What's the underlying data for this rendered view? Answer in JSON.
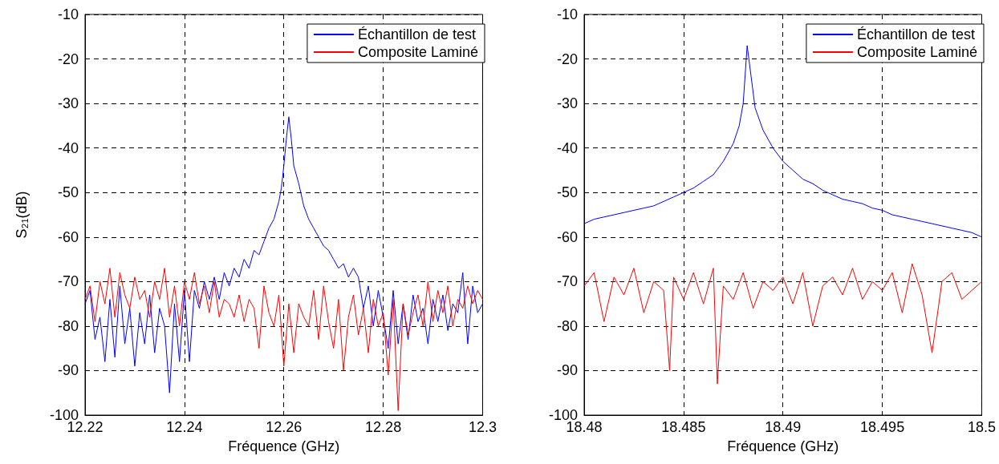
{
  "chart_data": [
    {
      "type": "line",
      "xlabel": "Fréquence (GHz)",
      "ylabel": "S₂₁(dB)",
      "xlim": [
        12.22,
        12.3
      ],
      "xticks": [
        12.22,
        12.24,
        12.26,
        12.28,
        12.3
      ],
      "ylim": [
        -100,
        -10
      ],
      "yticks": [
        -100,
        -90,
        -80,
        -70,
        -60,
        -50,
        -40,
        -30,
        -20,
        -10
      ],
      "grid": true,
      "legend": "top right",
      "line_style": "solid",
      "marker": "none",
      "series": [
        {
          "name": "Échantillon de test",
          "color": "#0000ff",
          "x": [
            12.22,
            12.221,
            12.222,
            12.223,
            12.224,
            12.225,
            12.226,
            12.227,
            12.228,
            12.229,
            12.23,
            12.231,
            12.232,
            12.233,
            12.234,
            12.235,
            12.236,
            12.237,
            12.238,
            12.239,
            12.24,
            12.241,
            12.242,
            12.243,
            12.244,
            12.245,
            12.246,
            12.247,
            12.248,
            12.249,
            12.25,
            12.251,
            12.252,
            12.253,
            12.254,
            12.255,
            12.256,
            12.257,
            12.258,
            12.259,
            12.2595,
            12.26,
            12.2605,
            12.261,
            12.2615,
            12.262,
            12.263,
            12.264,
            12.265,
            12.266,
            12.267,
            12.268,
            12.269,
            12.27,
            12.271,
            12.272,
            12.273,
            12.274,
            12.275,
            12.276,
            12.277,
            12.278,
            12.279,
            12.28,
            12.281,
            12.282,
            12.283,
            12.284,
            12.285,
            12.286,
            12.287,
            12.288,
            12.289,
            12.29,
            12.291,
            12.292,
            12.293,
            12.294,
            12.295,
            12.296,
            12.297,
            12.298,
            12.299,
            12.3
          ],
          "values": [
            -75,
            -72,
            -83,
            -78,
            -88,
            -74,
            -87,
            -71,
            -84,
            -76,
            -89,
            -77,
            -84,
            -73,
            -86,
            -76,
            -80,
            -95,
            -75,
            -88,
            -72,
            -88,
            -72,
            -76,
            -70,
            -74,
            -69,
            -74,
            -68,
            -71,
            -67,
            -69,
            -65,
            -67,
            -63,
            -64,
            -61,
            -58,
            -56,
            -52,
            -49,
            -44,
            -38,
            -33,
            -38,
            -44,
            -48,
            -53,
            -56,
            -58,
            -60,
            -62,
            -63,
            -65,
            -67,
            -66,
            -69,
            -67,
            -69,
            -76,
            -71,
            -80,
            -72,
            -78,
            -85,
            -72,
            -84,
            -75,
            -83,
            -73,
            -79,
            -76,
            -84,
            -74,
            -79,
            -73,
            -81,
            -75,
            -77,
            -68,
            -84,
            -71,
            -77,
            -75
          ]
        },
        {
          "name": "Composite Laminé",
          "color": "#ff0000",
          "x": [
            12.22,
            12.221,
            12.222,
            12.223,
            12.224,
            12.225,
            12.226,
            12.227,
            12.228,
            12.229,
            12.23,
            12.231,
            12.232,
            12.233,
            12.234,
            12.235,
            12.236,
            12.237,
            12.238,
            12.239,
            12.24,
            12.241,
            12.242,
            12.243,
            12.244,
            12.245,
            12.246,
            12.247,
            12.248,
            12.249,
            12.25,
            12.251,
            12.252,
            12.253,
            12.254,
            12.255,
            12.256,
            12.257,
            12.258,
            12.259,
            12.26,
            12.261,
            12.262,
            12.263,
            12.264,
            12.265,
            12.266,
            12.267,
            12.268,
            12.269,
            12.27,
            12.271,
            12.272,
            12.273,
            12.274,
            12.275,
            12.276,
            12.277,
            12.278,
            12.279,
            12.28,
            12.281,
            12.282,
            12.283,
            12.284,
            12.285,
            12.286,
            12.287,
            12.288,
            12.289,
            12.29,
            12.291,
            12.292,
            12.293,
            12.294,
            12.295,
            12.296,
            12.297,
            12.298,
            12.299,
            12.3
          ],
          "values": [
            -74,
            -71,
            -79,
            -70,
            -75,
            -67,
            -78,
            -68,
            -73,
            -76,
            -69,
            -74,
            -72,
            -78,
            -70,
            -74,
            -67,
            -78,
            -71,
            -80,
            -70,
            -74,
            -68,
            -75,
            -71,
            -77,
            -70,
            -78,
            -74,
            -75,
            -78,
            -73,
            -79,
            -74,
            -76,
            -85,
            -71,
            -77,
            -80,
            -73,
            -89,
            -75,
            -86,
            -75,
            -78,
            -80,
            -72,
            -83,
            -71,
            -79,
            -85,
            -74,
            -90,
            -78,
            -73,
            -82,
            -76,
            -86,
            -74,
            -80,
            -77,
            -91,
            -74,
            -99,
            -75,
            -82,
            -77,
            -73,
            -80,
            -70,
            -79,
            -72,
            -77,
            -71,
            -80,
            -74,
            -76,
            -71,
            -75,
            -72,
            -74
          ]
        }
      ]
    },
    {
      "type": "line",
      "xlabel": "Fréquence (GHz)",
      "xlim": [
        18.48,
        18.5
      ],
      "xticks": [
        18.48,
        18.485,
        18.49,
        18.495,
        18.5
      ],
      "ylim": [
        -100,
        -10
      ],
      "yticks": [
        -100,
        -90,
        -80,
        -70,
        -60,
        -50,
        -40,
        -30,
        -20,
        -10
      ],
      "grid": true,
      "legend": "top right",
      "line_style": "solid",
      "marker": "none",
      "series": [
        {
          "name": "Échantillon de test",
          "color": "#0000ff",
          "x": [
            18.48,
            18.4805,
            18.481,
            18.4815,
            18.482,
            18.4825,
            18.483,
            18.4835,
            18.484,
            18.4845,
            18.485,
            18.4855,
            18.486,
            18.4865,
            18.487,
            18.4875,
            18.4878,
            18.488,
            18.4882,
            18.4884,
            18.4886,
            18.489,
            18.4895,
            18.49,
            18.4905,
            18.491,
            18.4915,
            18.492,
            18.4925,
            18.493,
            18.4935,
            18.494,
            18.4945,
            18.495,
            18.4955,
            18.496,
            18.4965,
            18.497,
            18.4975,
            18.498,
            18.4985,
            18.499,
            18.4995,
            18.5
          ],
          "values": [
            -57,
            -56,
            -55.5,
            -55,
            -54.5,
            -54,
            -53.5,
            -53,
            -52,
            -51,
            -50,
            -49,
            -47.5,
            -46,
            -43,
            -39,
            -35,
            -30,
            -17,
            -24,
            -31,
            -36,
            -40,
            -43,
            -45,
            -47,
            -48,
            -49.5,
            -50.5,
            -51.5,
            -52,
            -52.5,
            -53.5,
            -54,
            -55,
            -55.5,
            -56,
            -56.5,
            -57,
            -57.5,
            -58,
            -58.5,
            -59,
            -60
          ]
        },
        {
          "name": "Composite Laminé",
          "color": "#ff0000",
          "x": [
            18.48,
            18.4805,
            18.481,
            18.4815,
            18.482,
            18.4825,
            18.483,
            18.4835,
            18.484,
            18.4843,
            18.4845,
            18.485,
            18.4855,
            18.486,
            18.4865,
            18.4867,
            18.487,
            18.4875,
            18.488,
            18.4885,
            18.489,
            18.4895,
            18.49,
            18.4905,
            18.491,
            18.4915,
            18.492,
            18.4925,
            18.493,
            18.4935,
            18.494,
            18.4945,
            18.495,
            18.4955,
            18.496,
            18.4965,
            18.497,
            18.4975,
            18.498,
            18.4985,
            18.499,
            18.4995,
            18.5
          ],
          "values": [
            -71,
            -68,
            -79,
            -69,
            -73,
            -67,
            -77,
            -70,
            -72,
            -90,
            -69,
            -74,
            -68,
            -75,
            -67,
            -93,
            -71,
            -74,
            -68,
            -76,
            -70,
            -72,
            -69,
            -75,
            -68,
            -80,
            -71,
            -69,
            -73,
            -67,
            -74,
            -70,
            -72,
            -68,
            -77,
            -66,
            -73,
            -86,
            -70,
            -68,
            -74,
            -72,
            -70
          ]
        }
      ]
    }
  ]
}
